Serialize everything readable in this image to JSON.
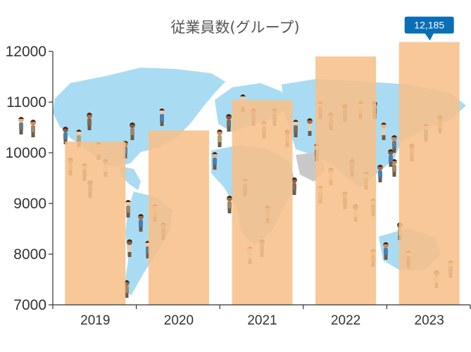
{
  "chart_data": {
    "type": "bar",
    "title": "従業員数(グループ)",
    "categories": [
      "2019",
      "2020",
      "2021",
      "2022",
      "2023"
    ],
    "series": [
      {
        "values": [
          10220,
          10440,
          11040,
          11900,
          12185
        ]
      }
    ],
    "ylim": [
      7000,
      12000
    ],
    "yticks": [
      "7000",
      "8000",
      "9000",
      "10000",
      "11000",
      "12000"
    ],
    "annotation": {
      "text": "12,185",
      "category": "2023",
      "value": 12185
    },
    "grid": false,
    "legend": "none",
    "background": "world map with employee figures",
    "colors": {
      "bar": "#f7c08a",
      "callout": "#0a6fb5",
      "map": "#a9dcf2",
      "axis": "#333333"
    }
  }
}
